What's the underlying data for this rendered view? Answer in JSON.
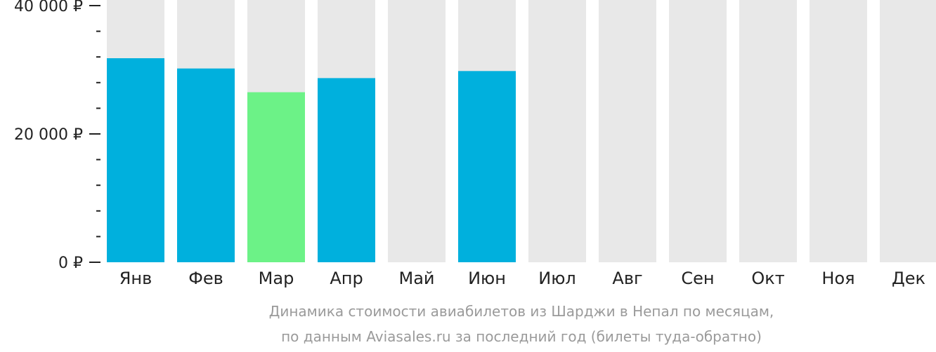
{
  "chart_data": {
    "type": "bar",
    "categories": [
      "Янв",
      "Фев",
      "Мар",
      "Апр",
      "Май",
      "Июн",
      "Июл",
      "Авг",
      "Сен",
      "Окт",
      "Ноя",
      "Дек"
    ],
    "values": [
      31800,
      30200,
      26500,
      28700,
      null,
      29800,
      null,
      null,
      null,
      null,
      null,
      null
    ],
    "ylim": [
      0,
      40000
    ],
    "y_ticks": [
      {
        "value": 40000,
        "label": "40 000 ₽"
      },
      {
        "value": 20000,
        "label": "20 000 ₽"
      },
      {
        "value": 0,
        "label": "0 ₽"
      }
    ],
    "y_minor_step": 4000,
    "highlight_category": "Мар",
    "caption_line1": "Динамика стоимости авиабилетов из Шарджи в Непал по месяцам,",
    "caption_line2": "по данным Aviasales.ru за последний год (билеты туда-обратно)",
    "colors": {
      "bar": "#00b0dd",
      "highlight": "#6cf287",
      "empty": "#e8e8e8",
      "axis": "#222222",
      "caption": "#9a9a9a"
    }
  }
}
